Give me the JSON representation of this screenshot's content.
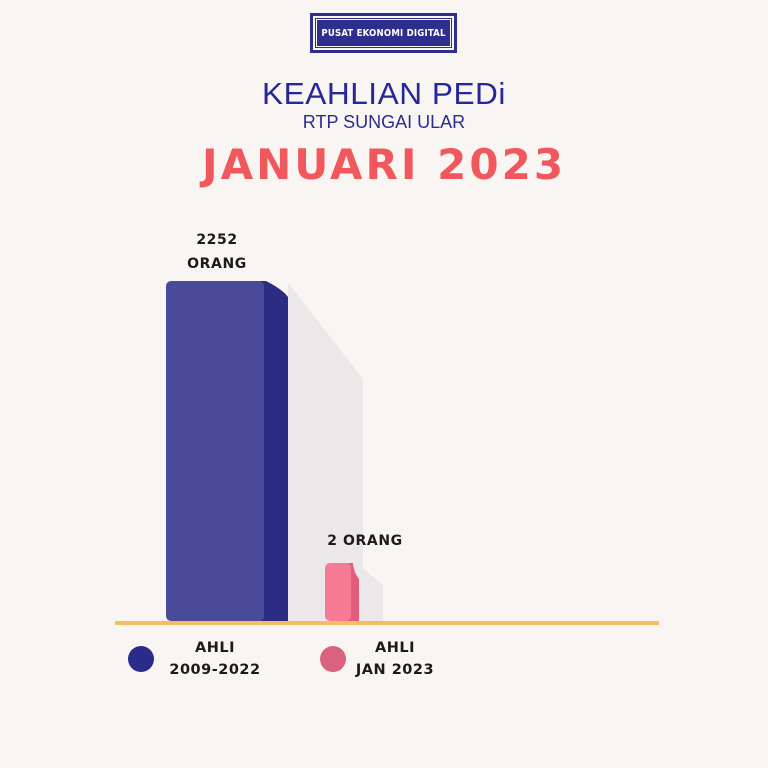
{
  "badge": "PUSAT EKONOMI DIGITAL",
  "title": "KEAHLIAN PEDi",
  "subtitle": "RTP SUNGAI ULAR",
  "period": "JANUARI 2023",
  "colors": {
    "title": "#27279a",
    "period": "#f1585e",
    "axis_line": "#f5bd63",
    "shadow": "#ece8ea"
  },
  "chart_data": {
    "type": "bar",
    "categories": [
      "AHLI 2009-2022",
      "AHLI JAN 2023"
    ],
    "values": [
      2252,
      2
    ],
    "data_labels": [
      [
        "2252",
        "ORANG"
      ],
      [
        "2 ORANG"
      ]
    ],
    "bar_colors": [
      {
        "front": "#4a4a98",
        "side": "#2c2c84"
      },
      {
        "front": "#f77a95",
        "side": "#e25d7b"
      }
    ],
    "legend": [
      {
        "lines": [
          "AHLI",
          "2009-2022"
        ],
        "color": "#2b2b8a"
      },
      {
        "lines": [
          "AHLI",
          "JAN 2023"
        ],
        "color": "#d9637f"
      }
    ],
    "ylim": [
      0,
      2252
    ],
    "grid": false,
    "legend_position": "bottom"
  }
}
